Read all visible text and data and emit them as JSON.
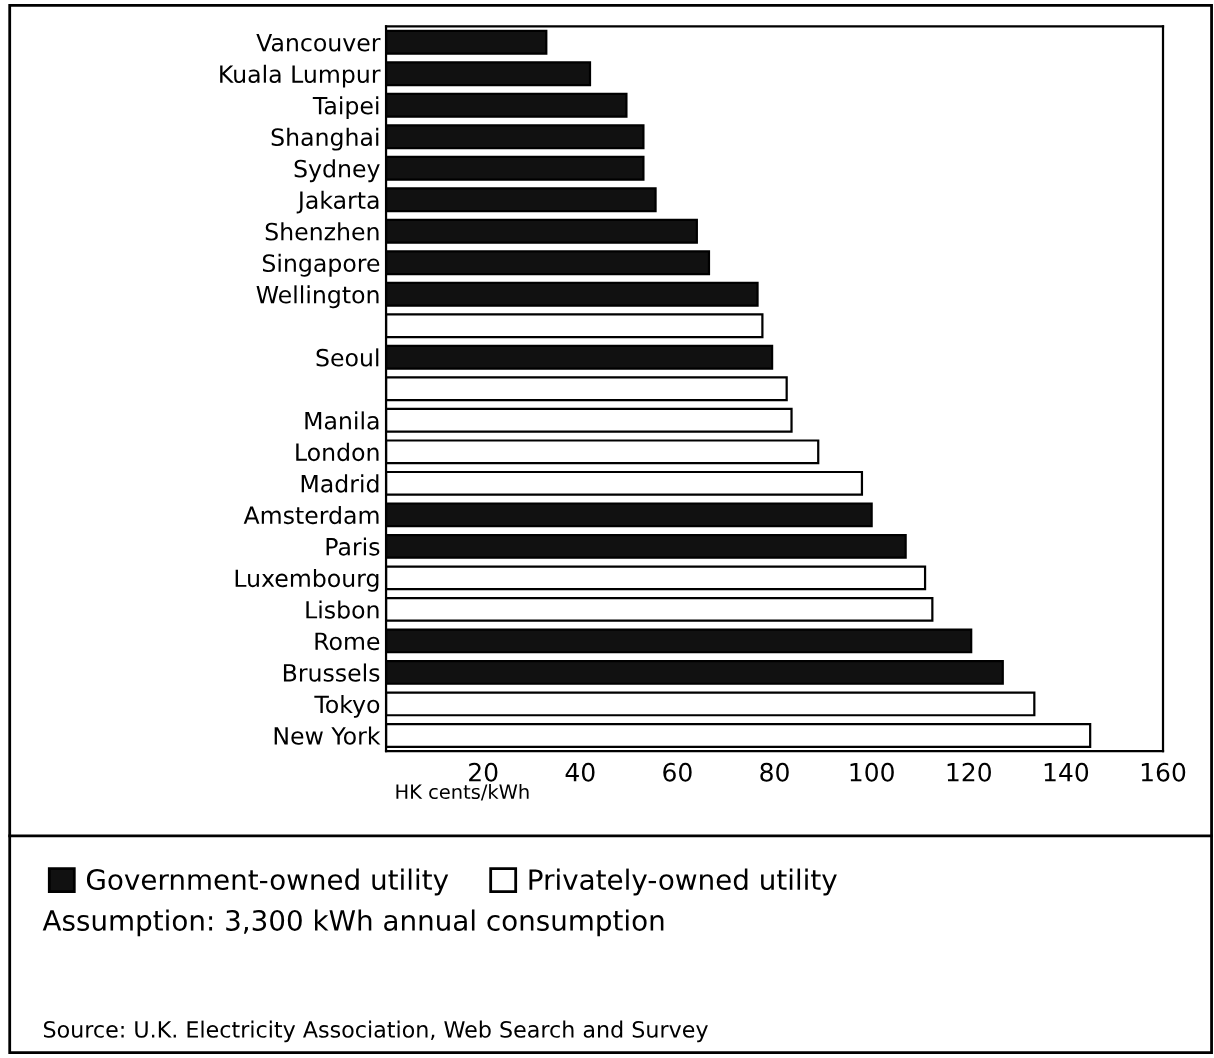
{
  "chart_data": {
    "type": "bar",
    "orientation": "horizontal",
    "categories": [
      "Vancouver",
      "Kuala Lumpur",
      "Taipei",
      "Shanghai",
      "Sydney",
      "Jakarta",
      "Shenzhen",
      "Singapore",
      "Wellington",
      null,
      "Seoul",
      null,
      "Manila",
      "London",
      "Madrid",
      "Amsterdam",
      "Paris",
      "Luxembourg",
      "Lisbon",
      "Rome",
      "Brussels",
      "Tokyo",
      "New York"
    ],
    "series": [
      {
        "name": "Government-owned utility",
        "color": "#111111",
        "values": [
          33,
          42,
          49.5,
          53,
          53,
          55.5,
          64,
          66.5,
          76.5,
          null,
          79.5,
          null,
          null,
          null,
          null,
          100,
          107,
          null,
          null,
          120.5,
          127,
          null,
          null
        ]
      },
      {
        "name": "Privately-owned utility",
        "color": "#ffffff",
        "values": [
          null,
          null,
          null,
          null,
          null,
          null,
          null,
          null,
          null,
          77.5,
          null,
          82.5,
          83.5,
          89,
          98,
          null,
          null,
          111,
          112.5,
          null,
          null,
          133.5,
          145
        ]
      }
    ],
    "xlabel": "HK cents/kWh",
    "xlim": [
      0,
      160
    ],
    "xticks": [
      20,
      40,
      60,
      80,
      100,
      120,
      140,
      160
    ],
    "grid": false,
    "legend": "bottom",
    "annotations": [
      "Assumption: 3,300 kWh annual consumption",
      "Source: U.K. Electricity Association, Web Search and Survey"
    ]
  }
}
